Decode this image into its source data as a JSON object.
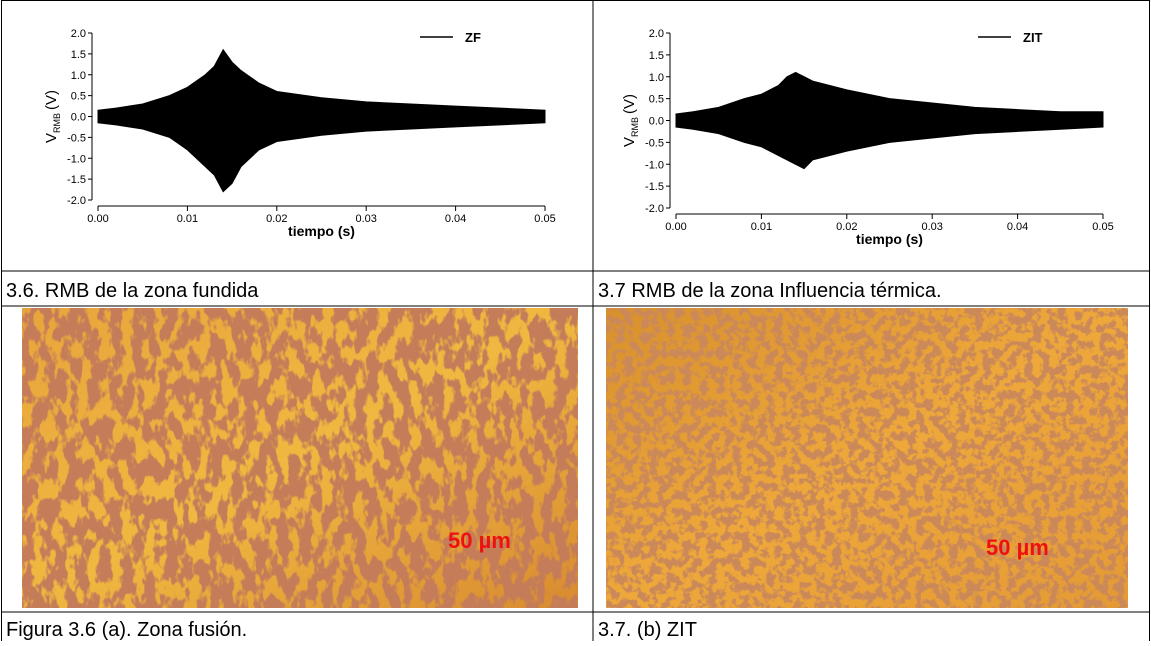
{
  "chart_data": [
    {
      "type": "envelope",
      "x_label": "tiempo (s)",
      "y_label": "V",
      "y_label_sub": "RMB",
      "y_label_unit": "(V)",
      "x": [
        0,
        0.002,
        0.005,
        0.008,
        0.01,
        0.012,
        0.013,
        0.014,
        0.015,
        0.016,
        0.018,
        0.02,
        0.025,
        0.03,
        0.035,
        0.04,
        0.045,
        0.05
      ],
      "series": [
        {
          "name": "ZF",
          "color": "#000000",
          "high": [
            0.15,
            0.2,
            0.3,
            0.5,
            0.7,
            1.0,
            1.2,
            1.6,
            1.3,
            1.1,
            0.8,
            0.6,
            0.45,
            0.35,
            0.3,
            0.25,
            0.2,
            0.15
          ],
          "low": [
            -0.15,
            -0.2,
            -0.3,
            -0.5,
            -0.8,
            -1.2,
            -1.4,
            -1.8,
            -1.6,
            -1.2,
            -0.8,
            -0.6,
            -0.45,
            -0.35,
            -0.3,
            -0.25,
            -0.2,
            -0.15
          ]
        }
      ],
      "xlim": [
        0,
        0.05
      ],
      "ylim": [
        -2,
        2
      ],
      "xticks": [
        {
          "value": 0,
          "label": "0.00"
        },
        {
          "value": 0.01,
          "label": "0.01"
        },
        {
          "value": 0.02,
          "label": "0.02"
        },
        {
          "value": 0.03,
          "label": "0.03"
        },
        {
          "value": 0.04,
          "label": "0.04"
        },
        {
          "value": 0.05,
          "label": "0.05"
        }
      ],
      "yticks": [
        {
          "value": -2,
          "label": "-2.0"
        },
        -1.5,
        {
          "value": -1,
          "label": "-1.0"
        },
        -0.5,
        {
          "value": 0,
          "label": "0.0"
        },
        0.5,
        {
          "value": 1,
          "label": "1.0"
        },
        1.5,
        {
          "value": 2,
          "label": "2.0"
        }
      ]
    },
    {
      "type": "envelope",
      "x_label": "tiempo (s)",
      "y_label": "V",
      "y_label_sub": "RMB",
      "y_label_unit": "(V)",
      "x": [
        0,
        0.002,
        0.005,
        0.008,
        0.01,
        0.012,
        0.013,
        0.014,
        0.015,
        0.016,
        0.018,
        0.02,
        0.025,
        0.03,
        0.035,
        0.04,
        0.045,
        0.05
      ],
      "series": [
        {
          "name": "ZIT",
          "color": "#000000",
          "high": [
            0.15,
            0.2,
            0.3,
            0.5,
            0.6,
            0.8,
            1.0,
            1.1,
            1.0,
            0.9,
            0.8,
            0.7,
            0.5,
            0.4,
            0.3,
            0.25,
            0.2,
            0.2
          ],
          "low": [
            -0.15,
            -0.2,
            -0.3,
            -0.5,
            -0.6,
            -0.8,
            -0.9,
            -1.0,
            -1.1,
            -0.9,
            -0.8,
            -0.7,
            -0.5,
            -0.4,
            -0.3,
            -0.25,
            -0.2,
            -0.15
          ]
        }
      ],
      "xlim": [
        0,
        0.05
      ],
      "ylim": [
        -2,
        2
      ],
      "xticks": [
        {
          "value": 0,
          "label": "0.00"
        },
        {
          "value": 0.01,
          "label": "0.01"
        },
        {
          "value": 0.02,
          "label": "0.02"
        },
        {
          "value": 0.03,
          "label": "0.03"
        },
        {
          "value": 0.04,
          "label": "0.04"
        },
        {
          "value": 0.05,
          "label": "0.05"
        }
      ],
      "yticks": [
        {
          "value": -2,
          "label": "-2.0"
        },
        -1.5,
        {
          "value": -1,
          "label": "-1.0"
        },
        -0.5,
        {
          "value": 0,
          "label": "0.0"
        },
        0.5,
        {
          "value": 1,
          "label": "1.0"
        },
        1.5,
        {
          "value": 2,
          "label": "2.0"
        }
      ]
    }
  ],
  "chart_captions": [
    "3.6. RMB de la zona fundida",
    "3.7 RMB de la zona Influencia térmica."
  ],
  "micrographs": [
    {
      "scale_label": "50 µm",
      "caption": "Figura 3.6 (a). Zona fusión."
    },
    {
      "scale_label": "50 µm",
      "caption": "3.7. (b) ZIT"
    }
  ]
}
